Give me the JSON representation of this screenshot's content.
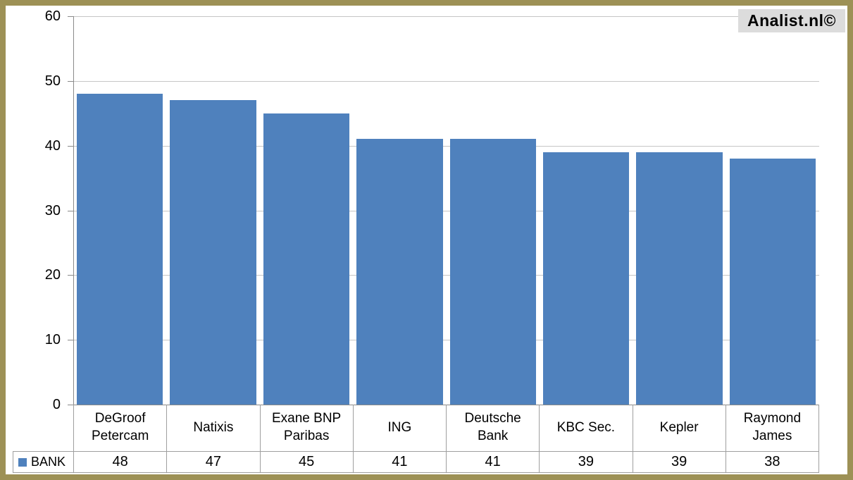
{
  "watermark": {
    "label": "Analist.nl©",
    "background": "#dcdcdc"
  },
  "legend": {
    "label": "BANK",
    "swatch_color": "#4F81BD"
  },
  "colors": {
    "bar": "#4F81BD",
    "frame_border": "#9d9156",
    "gridline": "#c6c6c6",
    "axis": "#8a8a8a",
    "table_border": "#9f9f9f"
  },
  "chart_data": {
    "type": "bar",
    "title": "",
    "xlabel": "",
    "ylabel": "",
    "categories": [
      "DeGroof Petercam",
      "Natixis",
      "Exane BNP Paribas",
      "ING",
      "Deutsche Bank",
      "KBC Sec.",
      "Kepler",
      "Raymond James"
    ],
    "series": [
      {
        "name": "BANK",
        "values": [
          48,
          47,
          45,
          41,
          41,
          39,
          39,
          38
        ]
      }
    ],
    "values": [
      48,
      47,
      45,
      41,
      41,
      39,
      39,
      38
    ],
    "ylim": [
      0,
      60
    ],
    "yticks": [
      0,
      10,
      20,
      30,
      40,
      50,
      60
    ],
    "grid": true,
    "legend_position": "bottom data table",
    "bar_color": "#4F81BD"
  }
}
